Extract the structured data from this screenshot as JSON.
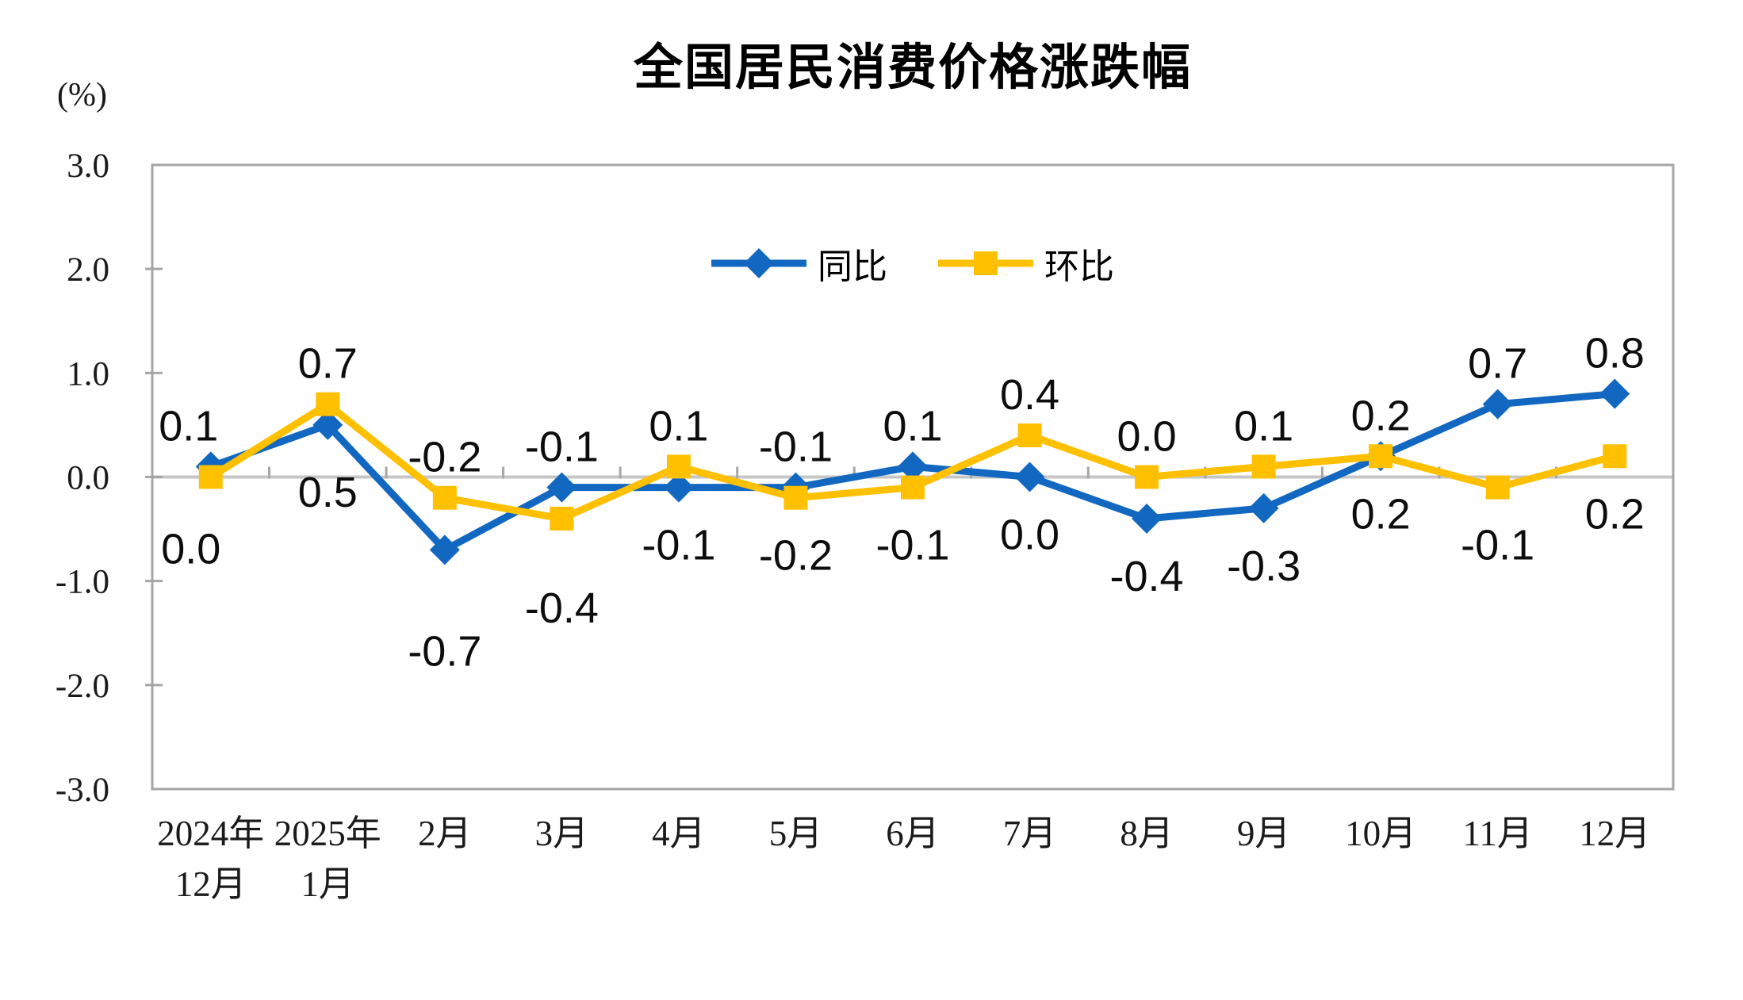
{
  "chart_data": {
    "type": "line",
    "title": "全国居民消费价格涨跌幅",
    "y_axis_unit": "(%)",
    "ylim": [
      -3.0,
      3.0
    ],
    "y_ticks": [
      3.0,
      2.0,
      1.0,
      0.0,
      -1.0,
      -2.0,
      -3.0
    ],
    "categories": [
      [
        "2024年",
        "12月"
      ],
      [
        "2025年",
        "1月"
      ],
      [
        "2月"
      ],
      [
        "3月"
      ],
      [
        "4月"
      ],
      [
        "5月"
      ],
      [
        "6月"
      ],
      [
        "7月"
      ],
      [
        "8月"
      ],
      [
        "9月"
      ],
      [
        "10月"
      ],
      [
        "11月"
      ],
      [
        "12月"
      ]
    ],
    "series": [
      {
        "id": "yoy",
        "name": "同比",
        "color": "#1268C1",
        "marker": "diamond",
        "values": [
          0.1,
          0.5,
          -0.7,
          -0.1,
          -0.1,
          -0.1,
          0.1,
          0.0,
          -0.4,
          -0.3,
          0.2,
          0.7,
          0.8
        ]
      },
      {
        "id": "mom",
        "name": "环比",
        "color": "#FFC000",
        "marker": "square",
        "values": [
          0.0,
          0.7,
          -0.2,
          -0.4,
          0.1,
          -0.2,
          -0.1,
          0.4,
          0.0,
          0.1,
          0.2,
          -0.1,
          0.2
        ]
      }
    ],
    "legend_position": "top-center",
    "gridlines": false,
    "zero_line": true,
    "style": {
      "axis_color": "#A6A6A6",
      "zero_line_color": "#C6C6C6",
      "text_color": "#1a1a1a",
      "background": "#ffffff"
    },
    "label_nudges": {
      "0": {
        "0": {
          "dx": -28
        },
        "1": {
          "dy": 12
        },
        "2": {
          "dy": 55
        }
      },
      "1": {
        "0": {
          "dx": -25,
          "dy": 18
        },
        "3": {
          "dy": 40
        }
      }
    }
  }
}
